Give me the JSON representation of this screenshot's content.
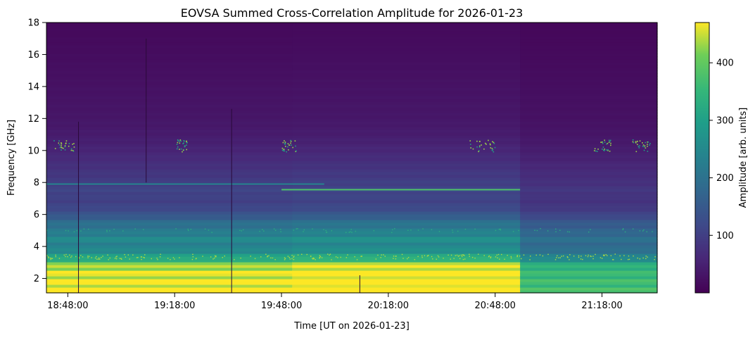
{
  "chart_data": {
    "type": "heatmap",
    "title": "EOVSA Summed Cross-Correlation Amplitude for 2026-01-23",
    "xlabel": "Time [UT on 2026-01-23]",
    "ylabel": "Frequency [GHz]",
    "x_range": [
      "18:42:00",
      "21:33:30"
    ],
    "ylim": [
      1.1,
      18
    ],
    "x_ticks": [
      "18:48:00",
      "19:18:00",
      "19:48:00",
      "20:18:00",
      "20:48:00",
      "21:18:00"
    ],
    "y_ticks": [
      2,
      4,
      6,
      8,
      10,
      12,
      14,
      16,
      18
    ],
    "grid": false,
    "colormap": "viridis",
    "colorbar": {
      "label": "Amplitude [arb. units]",
      "min": 0,
      "max": 470,
      "ticks": [
        100,
        200,
        300,
        400
      ]
    },
    "frequency_profile": [
      {
        "freq_ghz": 1.2,
        "amplitude": 470
      },
      {
        "freq_ghz": 2.0,
        "amplitude": 460
      },
      {
        "freq_ghz": 2.8,
        "amplitude": 440
      },
      {
        "freq_ghz": 3.2,
        "amplitude": 330
      },
      {
        "freq_ghz": 3.6,
        "amplitude": 270
      },
      {
        "freq_ghz": 4.0,
        "amplitude": 230
      },
      {
        "freq_ghz": 4.5,
        "amplitude": 250
      },
      {
        "freq_ghz": 5.0,
        "amplitude": 215
      },
      {
        "freq_ghz": 5.5,
        "amplitude": 190
      },
      {
        "freq_ghz": 6.0,
        "amplitude": 140
      },
      {
        "freq_ghz": 6.5,
        "amplitude": 110
      },
      {
        "freq_ghz": 7.0,
        "amplitude": 100
      },
      {
        "freq_ghz": 7.5,
        "amplitude": 110
      },
      {
        "freq_ghz": 8.0,
        "amplitude": 95
      },
      {
        "freq_ghz": 9.0,
        "amplitude": 75
      },
      {
        "freq_ghz": 10.0,
        "amplitude": 55
      },
      {
        "freq_ghz": 11.0,
        "amplitude": 40
      },
      {
        "freq_ghz": 12.0,
        "amplitude": 32
      },
      {
        "freq_ghz": 14.0,
        "amplitude": 25
      },
      {
        "freq_ghz": 16.0,
        "amplitude": 18
      },
      {
        "freq_ghz": 18.0,
        "amplitude": 12
      }
    ],
    "time_segments": [
      {
        "start": "18:42:00",
        "end": "19:51:00",
        "scale": 1.0
      },
      {
        "start": "19:51:00",
        "end": "20:55:00",
        "scale": 1.05
      },
      {
        "start": "20:55:00",
        "end": "21:33:30",
        "scale": 0.78
      }
    ],
    "bright_bands": [
      {
        "freq_ghz": 7.55,
        "start": "19:48:00",
        "end": "20:55:00",
        "amplitude": 380
      },
      {
        "freq_ghz": 7.9,
        "start": "18:42:00",
        "end": "20:00:00",
        "amplitude": 240
      }
    ],
    "rfi_clusters_10ghz": [
      {
        "time": "18:47:00",
        "width_min": 6
      },
      {
        "time": "19:20:00",
        "width_min": 3
      },
      {
        "time": "19:50:00",
        "width_min": 4
      },
      {
        "time": "20:44:00",
        "width_min": 8
      },
      {
        "time": "21:18:00",
        "width_min": 5
      },
      {
        "time": "21:29:00",
        "width_min": 5
      }
    ],
    "vertical_artifacts": [
      {
        "time": "18:51:00",
        "fmin": 1.1,
        "fmax": 11.8
      },
      {
        "time": "19:10:00",
        "fmin": 8.0,
        "fmax": 17.0
      },
      {
        "time": "19:34:00",
        "fmin": 1.1,
        "fmax": 12.6
      },
      {
        "time": "20:10:00",
        "fmin": 1.1,
        "fmax": 2.2
      }
    ]
  }
}
